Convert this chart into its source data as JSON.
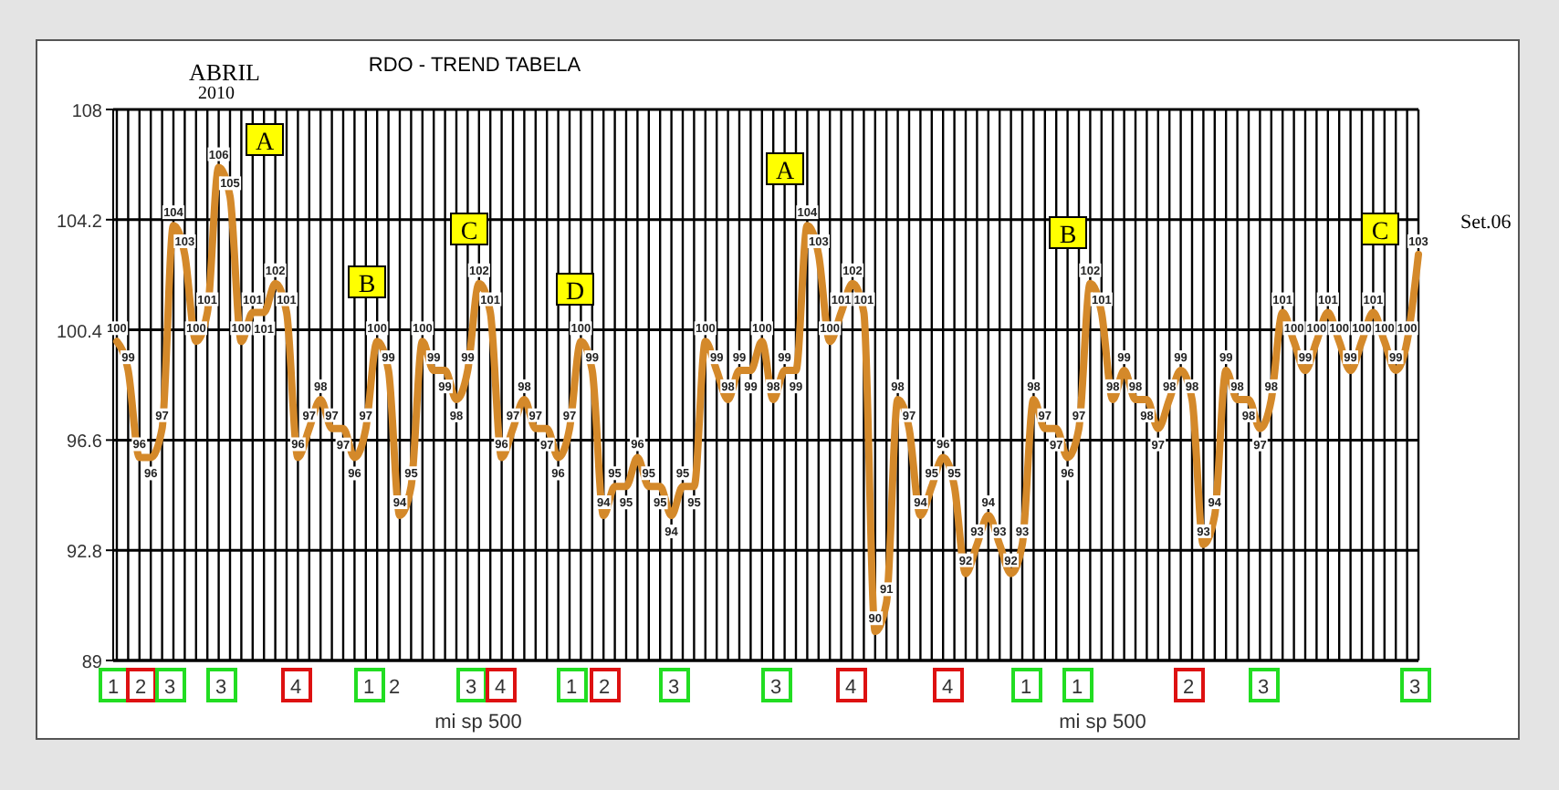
{
  "chart_data": {
    "type": "line",
    "title": "RDO - TREND TABELA",
    "categories": [
      null,
      null,
      null,
      null,
      null,
      null,
      null,
      null,
      null,
      null,
      null,
      null,
      null,
      null,
      null,
      null,
      null,
      null,
      null,
      null,
      null,
      null,
      null,
      null,
      null,
      null,
      null,
      null,
      null,
      null,
      null,
      null,
      null,
      null,
      null,
      null,
      null,
      null,
      null,
      null,
      null,
      null,
      null,
      null,
      null,
      null,
      null,
      null,
      null,
      null,
      null,
      null,
      null,
      null,
      null,
      null,
      null,
      null,
      null,
      null,
      null,
      null,
      null,
      null,
      null,
      null,
      null,
      null,
      null,
      null,
      null,
      null,
      null,
      null,
      null,
      null,
      null,
      null,
      null,
      null,
      null,
      null,
      null,
      null,
      null,
      null,
      null,
      null,
      null,
      null,
      null,
      null,
      null,
      null,
      null,
      null,
      null,
      null,
      null,
      null,
      null,
      null,
      null,
      null,
      null,
      null,
      null,
      null,
      null,
      null,
      null,
      null,
      null,
      null,
      null,
      null
    ],
    "series": [
      {
        "color": "#d4892a",
        "values": [
          100,
          99,
          96,
          96,
          97,
          104,
          103,
          100,
          101,
          106,
          105,
          100,
          101,
          101,
          102,
          101,
          96,
          97,
          98,
          97,
          97,
          96,
          97,
          100,
          99,
          94,
          95,
          100,
          99,
          99,
          98,
          99,
          102,
          101,
          96,
          97,
          98,
          97,
          97,
          96,
          97,
          100,
          99,
          94,
          95,
          95,
          96,
          95,
          95,
          94,
          95,
          95,
          100,
          99,
          98,
          99,
          99,
          100,
          98,
          99,
          99,
          104,
          103,
          100,
          101,
          102,
          101,
          90,
          91,
          98,
          97,
          94,
          95,
          96,
          95,
          92,
          93,
          94,
          93,
          92,
          93,
          98,
          97,
          97,
          96,
          97,
          102,
          101,
          98,
          99,
          98,
          98,
          97,
          98,
          99,
          98,
          93,
          94,
          99,
          98,
          98,
          97,
          98,
          101,
          100,
          99,
          100,
          101,
          100,
          99,
          100,
          101,
          100,
          99,
          100,
          103
        ]
      }
    ],
    "ylim": [
      89,
      108
    ],
    "yticks": [
      89,
      92.8,
      96.6,
      100.4,
      104.2,
      108
    ],
    "grid": true,
    "data_labels": true,
    "annotations": [
      "ABRIL$_{2010}$",
      "A",
      "B",
      "C",
      "D",
      "A",
      "B",
      "C",
      "Set.06",
      "1",
      "2",
      "3",
      "3",
      "4",
      "1",
      "2",
      "3",
      "4",
      "1",
      "2",
      "3",
      "3",
      "4",
      "4",
      "1",
      "1",
      "2",
      "3",
      "3",
      "mi sp 500",
      "mi sp 500"
    ]
  }
}
